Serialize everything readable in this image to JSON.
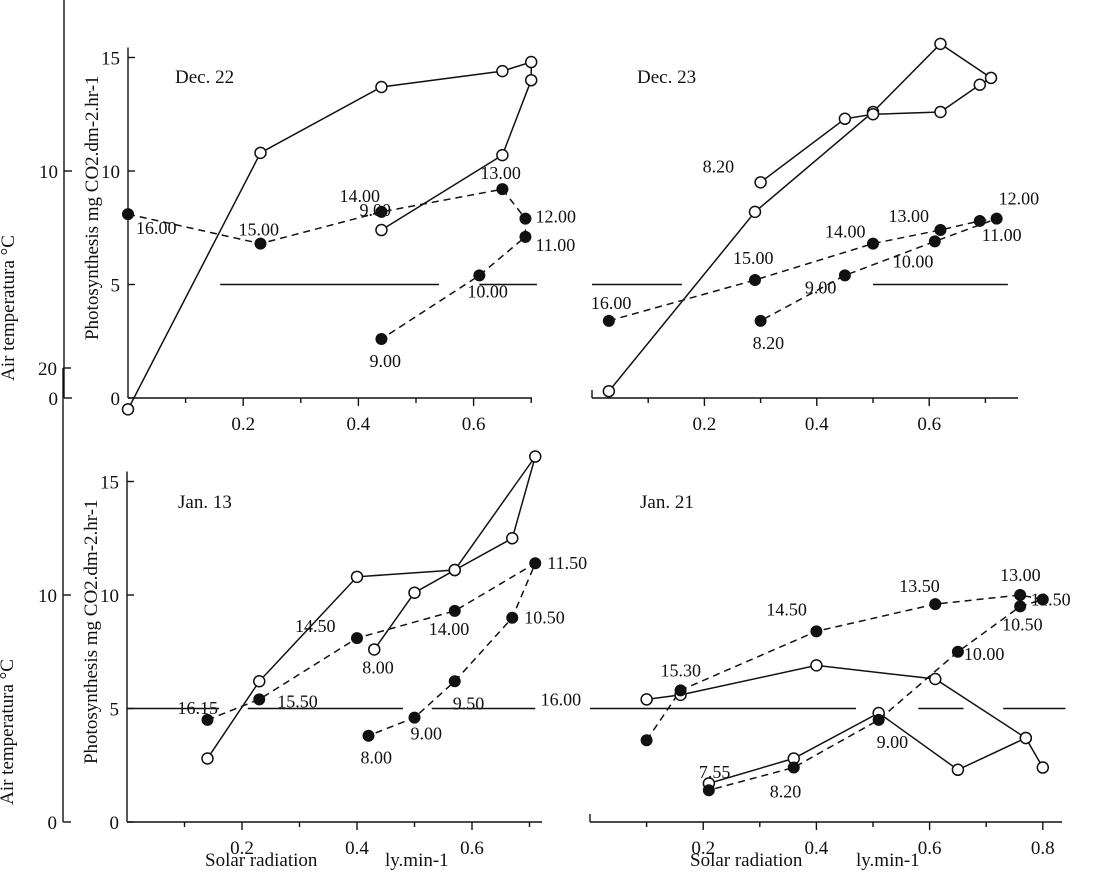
{
  "chart_data": [
    {
      "type": "line",
      "title": "Dec. 22",
      "xlabel": "",
      "ylabel": "Photosynthesis mg CO2.dm-2.hr-1",
      "y2label": "Air temperatura °C",
      "xlim": [
        0,
        0.72
      ],
      "ylim": [
        0,
        15
      ],
      "y2lim": [
        0,
        20
      ],
      "xticks": [
        "0.2",
        "0.4",
        "0.6"
      ],
      "yticks": [
        "0",
        "5",
        "10",
        "15"
      ],
      "y2ticks": [
        "0",
        "10",
        "20"
      ],
      "series": [
        {
          "style": "open-solid",
          "points": [
            [
              0.0,
              -0.5
            ],
            [
              0.23,
              10.8
            ],
            [
              0.44,
              13.7
            ],
            [
              0.65,
              14.4
            ],
            [
              0.7,
              14.8
            ],
            [
              0.7,
              14.0
            ],
            [
              0.65,
              10.7
            ],
            [
              0.44,
              7.4
            ]
          ]
        },
        {
          "style": "filled-dashed",
          "points": [
            [
              0.0,
              8.1
            ],
            [
              0.23,
              6.8
            ],
            [
              0.44,
              8.2
            ],
            [
              0.65,
              9.2
            ],
            [
              0.69,
              7.9
            ],
            [
              0.69,
              7.1
            ],
            [
              0.61,
              5.4
            ],
            [
              0.44,
              2.6
            ]
          ]
        }
      ],
      "point_labels": [
        {
          "text": "16.00",
          "x": 0.0,
          "y": 8.1
        },
        {
          "text": "15.00",
          "x": 0.23,
          "y": 6.8
        },
        {
          "text": "14.00",
          "x": 0.44,
          "y": 8.2
        },
        {
          "text": "13.00",
          "x": 0.65,
          "y": 9.2
        },
        {
          "text": "12.00",
          "x": 0.69,
          "y": 7.9
        },
        {
          "text": "11.00",
          "x": 0.69,
          "y": 7.1
        },
        {
          "text": "10.00",
          "x": 0.61,
          "y": 5.4
        },
        {
          "text": "9.00",
          "x": 0.44,
          "y": 2.6
        },
        {
          "text": "9.00",
          "x": 0.44,
          "y": 7.4
        }
      ],
      "reference_lines": [
        {
          "y2": 10,
          "segments": [
            [
              0.16,
              0.54
            ],
            [
              0.61,
              0.71
            ]
          ]
        }
      ]
    },
    {
      "type": "line",
      "title": "Dec. 23",
      "xlabel": "",
      "ylabel": "",
      "xlim": [
        0,
        0.75
      ],
      "ylim": [
        0,
        15
      ],
      "xticks": [
        "0.2",
        "0.4",
        "0.6"
      ],
      "series": [
        {
          "style": "open-solid",
          "points": [
            [
              0.03,
              0.3
            ],
            [
              0.29,
              8.2
            ],
            [
              0.5,
              12.6
            ],
            [
              0.62,
              15.6
            ],
            [
              0.71,
              14.1
            ],
            [
              0.69,
              13.8
            ],
            [
              0.62,
              12.6
            ],
            [
              0.5,
              12.5
            ],
            [
              0.45,
              12.3
            ],
            [
              0.3,
              9.5
            ]
          ]
        },
        {
          "style": "filled-dashed",
          "points": [
            [
              0.03,
              3.4
            ],
            [
              0.29,
              5.2
            ],
            [
              0.5,
              6.8
            ],
            [
              0.62,
              7.4
            ],
            [
              0.69,
              7.8
            ],
            [
              0.72,
              7.9
            ],
            [
              0.61,
              6.9
            ],
            [
              0.45,
              5.4
            ],
            [
              0.3,
              3.4
            ]
          ]
        }
      ],
      "point_labels": [
        {
          "text": "16.00",
          "x": 0.03,
          "y": 3.4
        },
        {
          "text": "15.00",
          "x": 0.29,
          "y": 5.2
        },
        {
          "text": "14.00",
          "x": 0.5,
          "y": 6.8
        },
        {
          "text": "13.00",
          "x": 0.62,
          "y": 7.4
        },
        {
          "text": "12.00",
          "x": 0.72,
          "y": 7.9
        },
        {
          "text": "11.00",
          "x": 0.69,
          "y": 7.8
        },
        {
          "text": "10.00",
          "x": 0.61,
          "y": 6.9
        },
        {
          "text": "9.00",
          "x": 0.45,
          "y": 5.4
        },
        {
          "text": "8.20",
          "x": 0.3,
          "y": 3.4
        },
        {
          "text": "8.20",
          "x": 0.3,
          "y": 9.5
        }
      ],
      "reference_lines": [
        {
          "y2": 10,
          "segments": [
            [
              0.0,
              0.16
            ],
            [
              0.5,
              0.74
            ]
          ]
        }
      ]
    },
    {
      "type": "line",
      "title": "Jan. 13",
      "xlabel": "Solar radiation ly.min-1",
      "ylabel": "Photosynthesis mg CO2.dm-2.hr-1",
      "y2label": "Air temperatura °C",
      "xlim": [
        0,
        0.72
      ],
      "ylim": [
        0,
        15
      ],
      "y2lim": [
        0,
        20
      ],
      "xticks": [
        "0.2",
        "0.4",
        "0.6"
      ],
      "yticks": [
        "0",
        "5",
        "10",
        "15"
      ],
      "y2ticks": [
        "0",
        "10",
        "20"
      ],
      "series": [
        {
          "style": "open-solid",
          "points": [
            [
              0.14,
              2.8
            ],
            [
              0.23,
              6.2
            ],
            [
              0.4,
              10.8
            ],
            [
              0.57,
              11.1
            ],
            [
              0.67,
              12.5
            ],
            [
              0.71,
              16.1
            ],
            [
              0.57,
              11.1
            ],
            [
              0.5,
              10.1
            ],
            [
              0.43,
              7.6
            ]
          ]
        },
        {
          "style": "filled-dashed",
          "points": [
            [
              0.14,
              4.5
            ],
            [
              0.23,
              5.4
            ],
            [
              0.4,
              8.1
            ],
            [
              0.57,
              9.3
            ],
            [
              0.71,
              11.4
            ],
            [
              0.67,
              9.0
            ],
            [
              0.57,
              6.2
            ],
            [
              0.5,
              4.6
            ],
            [
              0.42,
              3.8
            ]
          ]
        }
      ],
      "point_labels": [
        {
          "text": "16.15",
          "x": 0.14,
          "y": 4.5
        },
        {
          "text": "15.50",
          "x": 0.23,
          "y": 5.4
        },
        {
          "text": "14.50",
          "x": 0.4,
          "y": 8.1
        },
        {
          "text": "14.00",
          "x": 0.57,
          "y": 9.3
        },
        {
          "text": "11.50",
          "x": 0.71,
          "y": 11.4
        },
        {
          "text": "10.50",
          "x": 0.67,
          "y": 9.0
        },
        {
          "text": "9.50",
          "x": 0.57,
          "y": 6.2
        },
        {
          "text": "9.00",
          "x": 0.5,
          "y": 4.6
        },
        {
          "text": "8.00",
          "x": 0.42,
          "y": 3.8
        },
        {
          "text": "8.00",
          "x": 0.43,
          "y": 7.6
        }
      ],
      "reference_lines": [
        {
          "y2": 10,
          "segments": [
            [
              0.0,
              0.16
            ],
            [
              0.21,
              0.48
            ],
            [
              0.53,
              0.71
            ]
          ]
        }
      ]
    },
    {
      "type": "line",
      "title": "Jan. 21",
      "xlabel": "Solar radiation ly.min-1",
      "ylabel": "",
      "xlim": [
        0,
        0.82
      ],
      "ylim": [
        0,
        15
      ],
      "xticks": [
        "0.2",
        "0.4",
        "0.6",
        "0.8"
      ],
      "series": [
        {
          "style": "open-solid",
          "points": [
            [
              0.1,
              5.4
            ],
            [
              0.16,
              5.6
            ],
            [
              0.4,
              6.9
            ],
            [
              0.61,
              6.3
            ],
            [
              0.77,
              3.7
            ],
            [
              0.8,
              2.4
            ],
            [
              0.77,
              3.7
            ],
            [
              0.65,
              2.3
            ],
            [
              0.51,
              4.8
            ],
            [
              0.36,
              2.8
            ],
            [
              0.21,
              1.7
            ]
          ]
        },
        {
          "style": "filled-dashed",
          "points": [
            [
              0.1,
              3.6
            ],
            [
              0.16,
              5.8
            ],
            [
              0.4,
              8.4
            ],
            [
              0.61,
              9.6
            ],
            [
              0.76,
              10.0
            ],
            [
              0.8,
              9.8
            ],
            [
              0.76,
              9.5
            ],
            [
              0.65,
              7.5
            ],
            [
              0.51,
              4.5
            ],
            [
              0.36,
              2.4
            ],
            [
              0.21,
              1.4
            ]
          ]
        }
      ],
      "point_labels": [
        {
          "text": "16.00",
          "x": 0.1,
          "y": 5.4
        },
        {
          "text": "15.30",
          "x": 0.16,
          "y": 5.8
        },
        {
          "text": "14.50",
          "x": 0.4,
          "y": 8.4
        },
        {
          "text": "13.50",
          "x": 0.61,
          "y": 9.6
        },
        {
          "text": "13.00",
          "x": 0.76,
          "y": 10.0
        },
        {
          "text": "11.50",
          "x": 0.8,
          "y": 9.8
        },
        {
          "text": "10.50",
          "x": 0.76,
          "y": 9.5
        },
        {
          "text": "10.00",
          "x": 0.65,
          "y": 7.5
        },
        {
          "text": "9.00",
          "x": 0.51,
          "y": 4.5
        },
        {
          "text": "8.20",
          "x": 0.36,
          "y": 2.4
        },
        {
          "text": "7.55",
          "x": 0.21,
          "y": 1.4
        }
      ],
      "reference_lines": [
        {
          "y2": 10,
          "segments": [
            [
              0.0,
              0.47
            ],
            [
              0.58,
              0.66
            ],
            [
              0.73,
              0.84
            ]
          ]
        }
      ]
    }
  ]
}
